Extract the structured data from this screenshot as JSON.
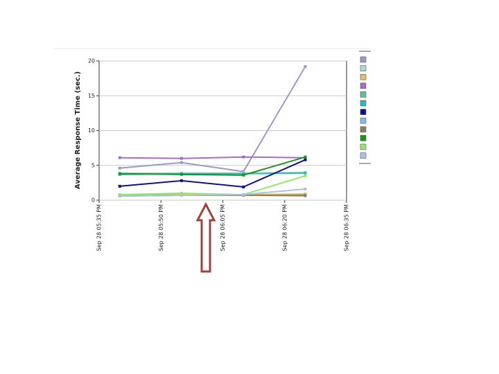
{
  "chart_data": {
    "type": "line",
    "y_label": "Average Response Time (sec.)",
    "x": [
      "Sep 28 05:40 PM",
      "Sep 28 05:55 PM",
      "Sep 28 06:10 PM",
      "Sep 28 06:25 PM"
    ],
    "xlim": [
      "Sep 28 05:35 PM",
      "Sep 28 06:35 PM"
    ],
    "xticks": [
      "Sep 28 05:35 PM",
      "Sep 28 05:50 PM",
      "Sep 28 06:05 PM",
      "Sep 28 06:20 PM",
      "Sep 28 06:35 PM"
    ],
    "ylim": [
      0,
      20
    ],
    "yticks": [
      0,
      5,
      10,
      15,
      20
    ],
    "grid": true,
    "series": [
      {
        "color": "#9a9ac8",
        "values": [
          4.6,
          5.4,
          4.1,
          19.2
        ]
      },
      {
        "color": "#a8d8d8",
        "values": [
          3.9,
          3.9,
          3.9,
          4.0
        ]
      },
      {
        "color": "#d8c070",
        "values": [
          0.7,
          0.8,
          0.8,
          0.9
        ]
      },
      {
        "color": "#a070c8",
        "values": [
          6.1,
          6.0,
          6.2,
          6.1
        ]
      },
      {
        "color": "#60c0a0",
        "values": [
          0.6,
          0.7,
          0.7,
          0.7
        ]
      },
      {
        "color": "#30b8b8",
        "values": [
          3.7,
          3.8,
          3.8,
          3.9
        ]
      },
      {
        "color": "#10108a",
        "values": [
          2.0,
          2.8,
          1.9,
          5.8
        ]
      },
      {
        "color": "#80c0e8",
        "values": [
          0.8,
          0.7,
          0.7,
          0.6
        ]
      },
      {
        "color": "#908060",
        "values": [
          0.6,
          0.7,
          0.7,
          0.7
        ]
      },
      {
        "color": "#209020",
        "values": [
          3.8,
          3.7,
          3.6,
          6.2
        ]
      },
      {
        "color": "#90e870",
        "values": [
          0.8,
          1.0,
          0.8,
          3.5
        ]
      },
      {
        "color": "#b0c0e0",
        "values": [
          0.6,
          0.7,
          0.8,
          1.6
        ]
      }
    ]
  }
}
